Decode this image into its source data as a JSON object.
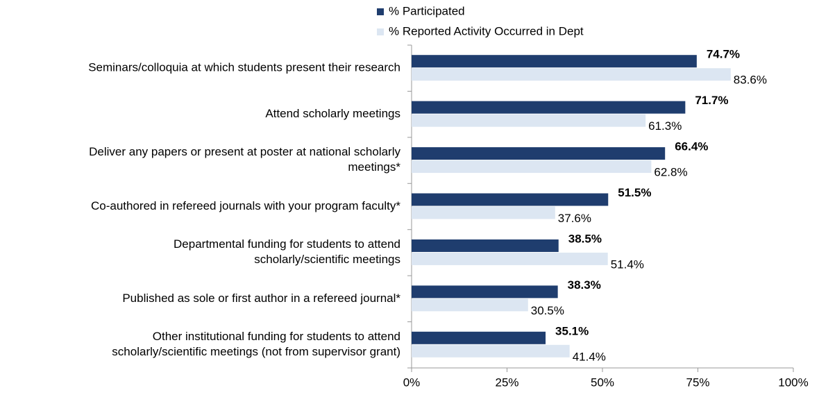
{
  "chart_data": {
    "type": "bar",
    "orientation": "horizontal",
    "categories": [
      "Seminars/colloquia at which students present their research",
      "Attend scholarly meetings",
      "Deliver any papers or present at poster at national scholarly\nmeetings*",
      "Co-authored in refereed journals with your program faculty*",
      "Departmental funding for students to attend\nscholarly/scientific meetings",
      "Published as sole or first author in a refereed journal*",
      "Other institutional funding for students to attend\nscholarly/scientific meetings (not from supervisor grant)"
    ],
    "series": [
      {
        "name": "% Participated",
        "color": "#1f3d6e",
        "values": [
          74.7,
          71.7,
          66.4,
          51.5,
          38.5,
          38.3,
          35.1
        ],
        "value_labels": [
          "74.7%",
          "71.7%",
          "66.4%",
          "51.5%",
          "38.5%",
          "38.3%",
          "35.1%"
        ]
      },
      {
        "name": "% Reported Activity Occurred in Dept",
        "color": "#dce6f2",
        "values": [
          83.6,
          61.3,
          62.8,
          37.6,
          51.4,
          30.5,
          41.4
        ],
        "value_labels": [
          "83.6%",
          "61.3%",
          "62.8%",
          "37.6%",
          "51.4%",
          "30.5%",
          "41.4%"
        ]
      }
    ],
    "xlim": [
      0,
      100
    ],
    "xticks": [
      {
        "value": 0,
        "label": "0%"
      },
      {
        "value": 25,
        "label": "25%"
      },
      {
        "value": 50,
        "label": "50%"
      },
      {
        "value": 75,
        "label": "75%"
      },
      {
        "value": 100,
        "label": "100%"
      }
    ],
    "legend": "top"
  }
}
